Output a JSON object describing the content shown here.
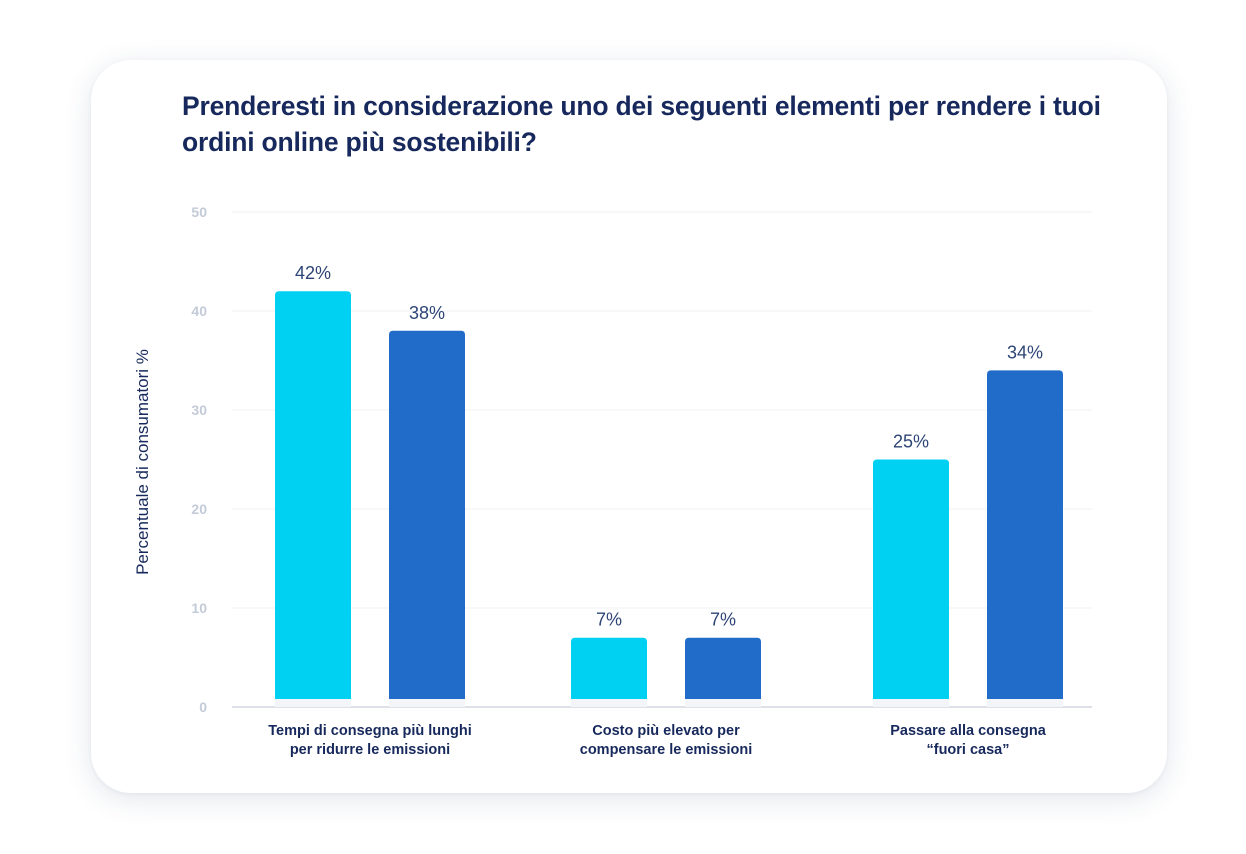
{
  "chart_data": {
    "type": "bar",
    "title": "Prenderesti in considerazione uno dei seguenti elementi per rendere i tuoi ordini online più sostenibili?",
    "ylabel": "Percentuale di consumatori %",
    "xlabel": "",
    "ylim": [
      0,
      50
    ],
    "yticks": [
      0,
      10,
      20,
      30,
      40,
      50
    ],
    "grid": true,
    "legend": "none",
    "categories": [
      [
        "Tempi di consegna più lunghi",
        "per ridurre le emissioni"
      ],
      [
        "Costo più elevato per",
        "compensare le emissioni"
      ],
      [
        "Passare alla consegna",
        "“fuori casa”"
      ]
    ],
    "series": [
      {
        "color": "#00d0f2",
        "values": [
          42,
          7,
          25
        ],
        "labels": [
          "42%",
          "7%",
          "25%"
        ]
      },
      {
        "color": "#216cc9",
        "values": [
          38,
          7,
          34
        ],
        "labels": [
          "38%",
          "7%",
          "34%"
        ]
      }
    ]
  },
  "colors": {
    "title": "#17295c",
    "grid": "#eef1f6",
    "axis": "#c9cfdb",
    "tick_label": "#c3cad8",
    "data_label": "#2d4576"
  }
}
